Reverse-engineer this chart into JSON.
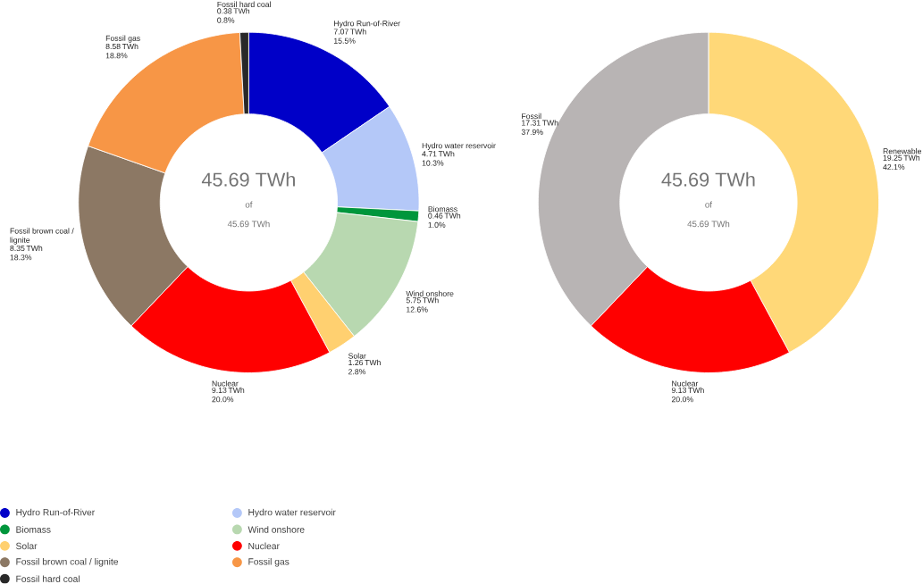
{
  "chart_data": [
    {
      "type": "donut",
      "categories": [
        "Hydro Run-of-River",
        "Hydro water reservoir",
        "Biomass",
        "Wind onshore",
        "Solar",
        "Nuclear",
        "Fossil brown coal / lignite",
        "Fossil gas",
        "Fossil hard coal"
      ],
      "values": [
        7.07,
        4.71,
        0.46,
        5.75,
        1.26,
        9.13,
        8.35,
        8.58,
        0.38
      ],
      "colors": [
        "#0000c8",
        "#b4c8f8",
        "#00963c",
        "#b8d8b0",
        "#ffd070",
        "#ff0000",
        "#8c7864",
        "#f79646",
        "#282828"
      ],
      "value_labels": [
        "7.07 TWh 15.5%",
        "4.71 TWh 10.3%",
        "0.46 TWh 1.0%",
        "5.75 TWh 12.6%",
        "1.26 TWh 2.8%",
        "9.13 TWh 20.0%",
        "8.35 TWh 18.3%",
        "8.58 TWh 18.8%",
        "0.38 TWh 0.8%"
      ],
      "annotations": [
        "45.69 TWh",
        "of",
        "45.69 TWh"
      ],
      "legend": "bottom"
    },
    {
      "type": "donut",
      "categories": [
        "Renewable",
        "Nuclear",
        "Fossil"
      ],
      "values": [
        19.25,
        9.13,
        17.31
      ],
      "colors": [
        "#ffd878",
        "#ff0000",
        "#b8b4b4"
      ],
      "value_labels": [
        "19.25 TWh 42.1%",
        "9.13 TWh 20.0%",
        "17.31 TWh 37.9%"
      ],
      "annotations": [
        "45.69 TWh",
        "of",
        "45.69 TWh"
      ]
    }
  ]
}
